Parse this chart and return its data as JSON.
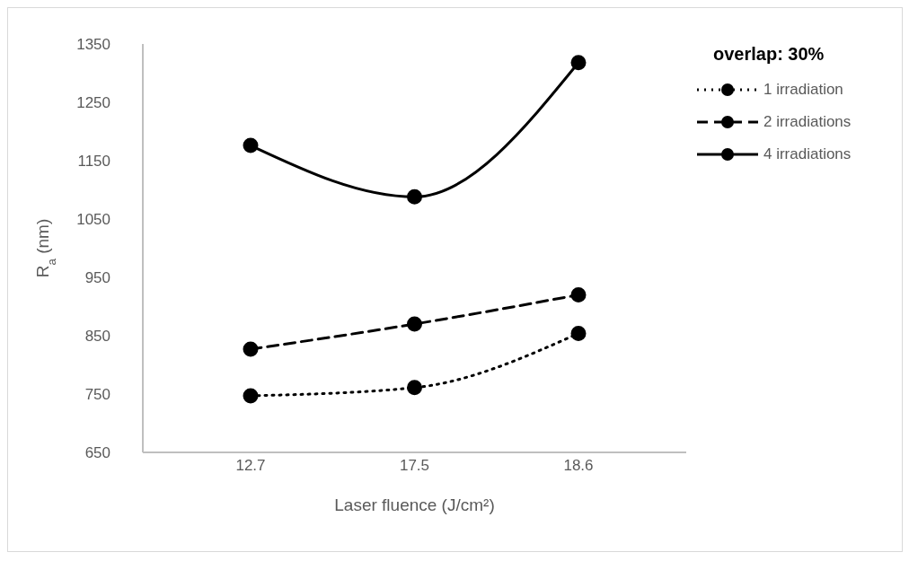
{
  "chart_data": {
    "type": "line",
    "xlabel": "Laser fluence (J/cm²)",
    "ylabel": "R$_{a}$ (nm)",
    "legend_title": "overlap: 30%",
    "categories": [
      "12.7",
      "17.5",
      "18.6"
    ],
    "series": [
      {
        "name": "1 irradiation",
        "color": "#000000",
        "line_style": "dotted",
        "values": [
          747,
          761,
          854
        ]
      },
      {
        "name": "2 irradiations",
        "color": "#000000",
        "line_style": "dashed",
        "values": [
          827,
          870,
          920
        ]
      },
      {
        "name": "4 irradiations",
        "color": "#000000",
        "line_style": "solid",
        "values": [
          1176,
          1088,
          1318
        ]
      }
    ],
    "ylim": [
      650,
      1350
    ],
    "yticks": [
      650,
      750,
      850,
      950,
      1050,
      1150,
      1250,
      1350
    ],
    "legend": "top right",
    "marker": "circle"
  }
}
